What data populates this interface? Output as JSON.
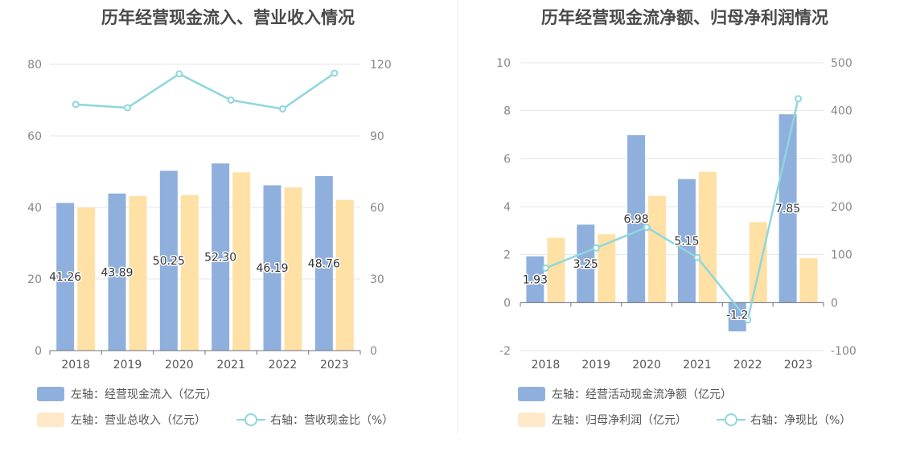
{
  "colors": {
    "bar_left": "#8fb0dc",
    "bar_right": "#ffe0a5",
    "bar_right_legend": "#ffe9c9",
    "line": "#8fd6dd",
    "grid": "#e3e6ee",
    "axis": "#6e7079"
  },
  "chart_data": [
    {
      "type": "bar",
      "title": "历年经营现金流入、营业收入情况",
      "categories": [
        "2018",
        "2019",
        "2020",
        "2021",
        "2022",
        "2023"
      ],
      "y_left": {
        "ylim": [
          0,
          80
        ],
        "ticks": [
          "0",
          "20",
          "40",
          "60",
          "80"
        ]
      },
      "y_right": {
        "ylim": [
          0,
          120
        ],
        "ticks": [
          "0",
          "30",
          "60",
          "90",
          "120"
        ]
      },
      "series": [
        {
          "name": "左轴：经营现金流入（亿元）",
          "axis": "left",
          "type": "bar",
          "values": [
            41.26,
            43.89,
            50.25,
            52.3,
            46.19,
            48.76
          ],
          "labels": [
            "41.26",
            "43.89",
            "50.25",
            "52.30",
            "46.19",
            "48.76"
          ]
        },
        {
          "name": "左轴：营业总收入（亿元）",
          "axis": "left",
          "type": "bar",
          "values": [
            40.0,
            43.2,
            43.5,
            49.8,
            45.6,
            42.1
          ]
        },
        {
          "name": "右轴：营收现金比（%）",
          "axis": "right",
          "type": "line",
          "values": [
            103.2,
            101.8,
            116.0,
            105.0,
            101.3,
            116.3
          ]
        }
      ]
    },
    {
      "type": "bar",
      "title": "历年经营现金流净额、归母净利润情况",
      "categories": [
        "2018",
        "2019",
        "2020",
        "2021",
        "2022",
        "2023"
      ],
      "y_left": {
        "ylim": [
          -2,
          10
        ],
        "ticks": [
          "-2",
          "0",
          "2",
          "4",
          "6",
          "8",
          "10"
        ]
      },
      "y_right": {
        "ylim": [
          -100,
          500
        ],
        "ticks": [
          "-100",
          "0",
          "100",
          "200",
          "300",
          "400",
          "500"
        ]
      },
      "series": [
        {
          "name": "左轴：经营活动现金流净额（亿元）",
          "axis": "left",
          "type": "bar",
          "values": [
            1.93,
            3.25,
            6.98,
            5.15,
            -1.2,
            7.85
          ],
          "labels": [
            "1.93",
            "3.25",
            "6.98",
            "5.15",
            "-1.2",
            "7.85"
          ]
        },
        {
          "name": "左轴：归母净利润（亿元）",
          "axis": "left",
          "type": "bar",
          "values": [
            2.7,
            2.85,
            4.45,
            5.45,
            3.35,
            1.85
          ]
        },
        {
          "name": "右轴：净现比（%）",
          "axis": "right",
          "type": "line",
          "values": [
            72,
            114,
            157,
            94,
            -36,
            425
          ]
        }
      ]
    }
  ]
}
